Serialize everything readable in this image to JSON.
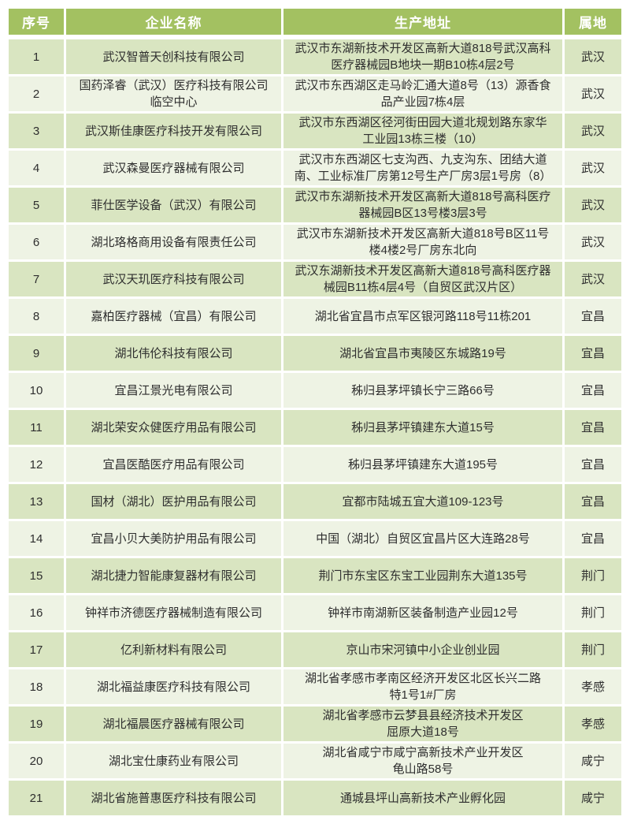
{
  "table": {
    "columns": [
      "序号",
      "企业名称",
      "生产地址",
      "属地"
    ],
    "rows": [
      {
        "no": "1",
        "name": "武汉智普天创科技有限公司",
        "address": "武汉市东湖新技术开发区高新大道818号武汉高科\n医疗器械园B地块一期B10栋4层2号",
        "region": "武汉"
      },
      {
        "no": "2",
        "name": "国药泽睿（武汉）医疗科技有限公司\n临空中心",
        "address": "武汉市东西湖区走马岭汇通大道8号（13）源香食\n品产业园7栋4层",
        "region": "武汉"
      },
      {
        "no": "3",
        "name": "武汉斯佳康医疗科技开发有限公司",
        "address": "武汉市东西湖区径河街田园大道北规划路东家华\n工业园13栋三楼（10）",
        "region": "武汉"
      },
      {
        "no": "4",
        "name": "武汉森曼医疗器械有限公司",
        "address": "武汉市东西湖区七支沟西、九支沟东、团结大道\n南、工业标准厂房第12号生产厂房3层1号房（8）",
        "region": "武汉"
      },
      {
        "no": "5",
        "name": "菲仕医学设备（武汉）有限公司",
        "address": "武汉市东湖新技术开发区高新大道818号高科医疗\n器械园B区13号楼3层3号",
        "region": "武汉"
      },
      {
        "no": "6",
        "name": "湖北珞格商用设备有限责任公司",
        "address": "武汉市东湖新技术开发区高新大道818号B区11号\n楼4楼2号厂房东北向",
        "region": "武汉"
      },
      {
        "no": "7",
        "name": "武汉天玑医疗科技有限公司",
        "address": "武汉东湖新技术开发区高新大道818号高科医疗器\n械园B11栋4层4号（自贸区武汉片区）",
        "region": "武汉"
      },
      {
        "no": "8",
        "name": "嘉柏医疗器械（宜昌）有限公司",
        "address": "湖北省宜昌市点军区银河路118号11栋201",
        "region": "宜昌"
      },
      {
        "no": "9",
        "name": "湖北伟伦科技有限公司",
        "address": "湖北省宜昌市夷陵区东城路19号",
        "region": "宜昌"
      },
      {
        "no": "10",
        "name": "宜昌江景光电有限公司",
        "address": "秭归县茅坪镇长宁三路66号",
        "region": "宜昌"
      },
      {
        "no": "11",
        "name": "湖北荣安众健医疗用品有限公司",
        "address": "秭归县茅坪镇建东大道15号",
        "region": "宜昌"
      },
      {
        "no": "12",
        "name": "宜昌医酷医疗用品有限公司",
        "address": "秭归县茅坪镇建东大道195号",
        "region": "宜昌"
      },
      {
        "no": "13",
        "name": "国材（湖北）医护用品有限公司",
        "address": "宜都市陆城五宜大道109-123号",
        "region": "宜昌"
      },
      {
        "no": "14",
        "name": "宜昌小贝大美防护用品有限公司",
        "address": "中国（湖北）自贸区宜昌片区大连路28号",
        "region": "宜昌"
      },
      {
        "no": "15",
        "name": "湖北捷力智能康复器材有限公司",
        "address": "荆门市东宝区东宝工业园荆东大道135号",
        "region": "荆门"
      },
      {
        "no": "16",
        "name": "钟祥市济德医疗器械制造有限公司",
        "address": "钟祥市南湖新区装备制造产业园12号",
        "region": "荆门"
      },
      {
        "no": "17",
        "name": "亿利新材料有限公司",
        "address": "京山市宋河镇中小企业创业园",
        "region": "荆门"
      },
      {
        "no": "18",
        "name": "湖北福益康医疗科技有限公司",
        "address": "湖北省孝感市孝南区经济开发区北区长兴二路\n特1号1#厂房",
        "region": "孝感"
      },
      {
        "no": "19",
        "name": "湖北福晨医疗器械有限公司",
        "address": "湖北省孝感市云梦县县经济技术开发区\n屈原大道18号",
        "region": "孝感"
      },
      {
        "no": "20",
        "name": "湖北宝仕康药业有限公司",
        "address": "湖北省咸宁市咸宁高新技术产业开发区\n龟山路58号",
        "region": "咸宁"
      },
      {
        "no": "21",
        "name": "湖北省施普惠医疗科技有限公司",
        "address": "通城县坪山高新技术产业孵化园",
        "region": "咸宁"
      }
    ]
  },
  "colors": {
    "header_bg": "#a3c161",
    "header_text": "#ffffff",
    "row_odd_bg": "#d9e5c1",
    "row_even_bg": "#eef3e4",
    "body_text": "#2e2e2e",
    "grid": "#ffffff"
  }
}
